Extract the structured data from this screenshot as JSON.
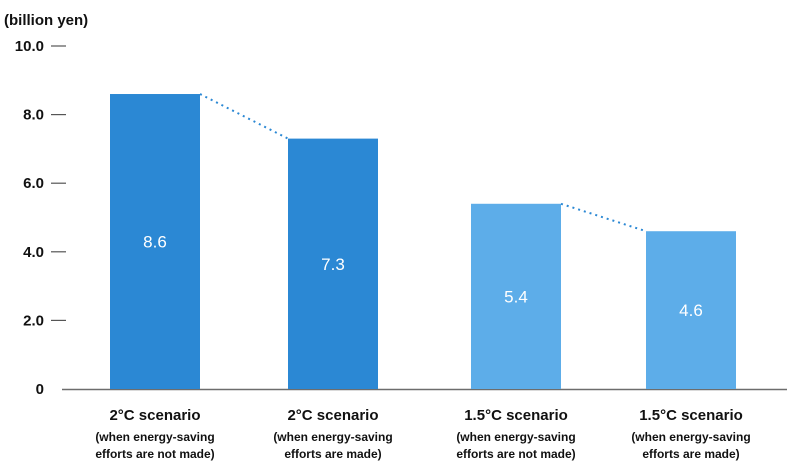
{
  "chart_data": {
    "type": "bar",
    "unit_label": "(billion yen)",
    "title": "",
    "xlabel": "",
    "ylabel": "",
    "ylim": [
      0,
      10
    ],
    "yticks": [
      {
        "value": 0,
        "label": "0"
      },
      {
        "value": 2,
        "label": "2.0"
      },
      {
        "value": 4,
        "label": "4.0"
      },
      {
        "value": 6,
        "label": "6.0"
      },
      {
        "value": 8,
        "label": "8.0"
      },
      {
        "value": 10,
        "label": "10.0"
      }
    ],
    "grid": false,
    "categories": [
      {
        "line1": "2°C scenario",
        "line2": "(when energy-saving",
        "line3": "efforts are not made)"
      },
      {
        "line1": "2°C scenario",
        "line2": "(when energy-saving",
        "line3": "efforts are made)"
      },
      {
        "line1": "1.5°C scenario",
        "line2": "(when energy-saving",
        "line3": "efforts are not made)"
      },
      {
        "line1": "1.5°C scenario",
        "line2": "(when energy-saving",
        "line3": "efforts are made)"
      }
    ],
    "values": [
      8.6,
      7.3,
      5.4,
      4.6
    ],
    "value_labels": [
      "8.6",
      "7.3",
      "5.4",
      "4.6"
    ],
    "bar_colors": [
      "#2b88d4",
      "#2b88d4",
      "#5dade9",
      "#5dade9"
    ],
    "connector_color": "#2b88d4"
  }
}
